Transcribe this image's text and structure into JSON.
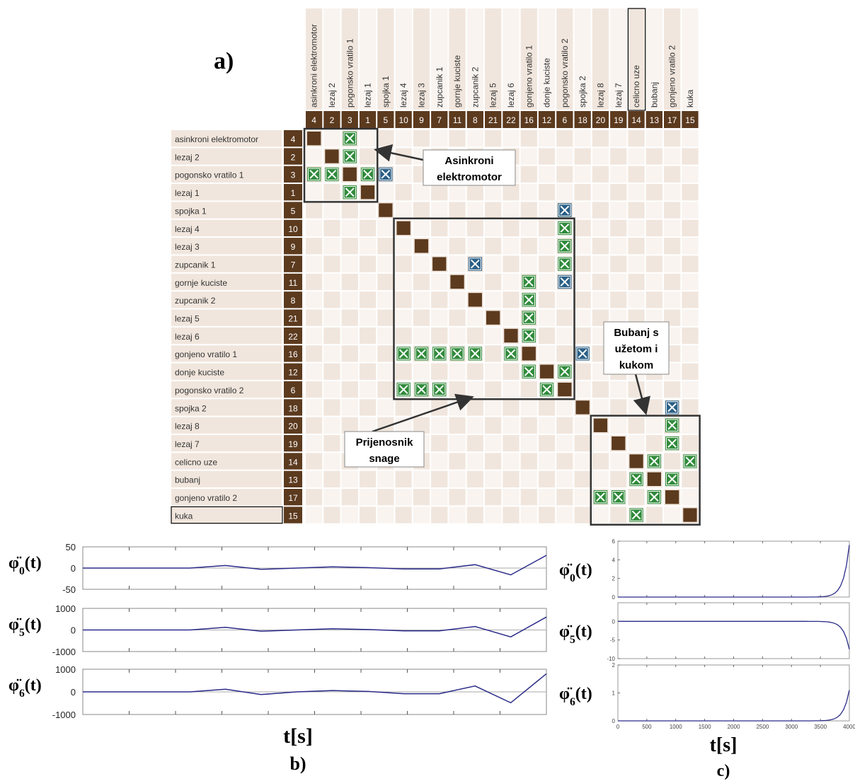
{
  "panel_a": {
    "label": "a)",
    "columns": [
      {
        "name": "asinkroni elektromotor",
        "id": "4"
      },
      {
        "name": "lezaj 2",
        "id": "2"
      },
      {
        "name": "pogonsko vratilo 1",
        "id": "3"
      },
      {
        "name": "lezaj 1",
        "id": "1"
      },
      {
        "name": "spojka 1",
        "id": "5"
      },
      {
        "name": "lezaj 4",
        "id": "10"
      },
      {
        "name": "lezaj 3",
        "id": "9"
      },
      {
        "name": "zupcanik 1",
        "id": "7"
      },
      {
        "name": "gornje kuciste",
        "id": "11"
      },
      {
        "name": "zupcanik 2",
        "id": "8"
      },
      {
        "name": "lezaj 5",
        "id": "21"
      },
      {
        "name": "lezaj 6",
        "id": "22"
      },
      {
        "name": "gonjeno vratilo 1",
        "id": "16"
      },
      {
        "name": "donje kuciste",
        "id": "12"
      },
      {
        "name": "pogonsko vratilo 2",
        "id": "6"
      },
      {
        "name": "spojka 2",
        "id": "18"
      },
      {
        "name": "lezaj 8",
        "id": "20"
      },
      {
        "name": "lezaj 7",
        "id": "19"
      },
      {
        "name": "celicno uze",
        "id": "14"
      },
      {
        "name": "bubanj",
        "id": "13"
      },
      {
        "name": "gonjeno vratilo 2",
        "id": "17"
      },
      {
        "name": "kuka",
        "id": "15"
      }
    ],
    "rows": [
      {
        "name": "asinkroni elektromotor",
        "id": "4"
      },
      {
        "name": "lezaj 2",
        "id": "2"
      },
      {
        "name": "pogonsko vratilo 1",
        "id": "3"
      },
      {
        "name": "lezaj 1",
        "id": "1"
      },
      {
        "name": "spojka 1",
        "id": "5"
      },
      {
        "name": "lezaj 4",
        "id": "10"
      },
      {
        "name": "lezaj 3",
        "id": "9"
      },
      {
        "name": "zupcanik 1",
        "id": "7"
      },
      {
        "name": "gornje kuciste",
        "id": "11"
      },
      {
        "name": "zupcanik 2",
        "id": "8"
      },
      {
        "name": "lezaj 5",
        "id": "21"
      },
      {
        "name": "lezaj 6",
        "id": "22"
      },
      {
        "name": "gonjeno vratilo 1",
        "id": "16"
      },
      {
        "name": "donje kuciste",
        "id": "12"
      },
      {
        "name": "pogonsko vratilo 2",
        "id": "6"
      },
      {
        "name": "spojka 2",
        "id": "18"
      },
      {
        "name": "lezaj 8",
        "id": "20"
      },
      {
        "name": "lezaj 7",
        "id": "19"
      },
      {
        "name": "celicno uze",
        "id": "14"
      },
      {
        "name": "bubanj",
        "id": "13"
      },
      {
        "name": "gonjeno vratilo 2",
        "id": "17"
      },
      {
        "name": "kuka",
        "id": "15"
      }
    ],
    "green_marks": [
      [
        0,
        2
      ],
      [
        1,
        2
      ],
      [
        2,
        0
      ],
      [
        2,
        1
      ],
      [
        2,
        3
      ],
      [
        3,
        2
      ],
      [
        4,
        14
      ],
      [
        5,
        14
      ],
      [
        6,
        14
      ],
      [
        7,
        14
      ],
      [
        8,
        12
      ],
      [
        9,
        12
      ],
      [
        10,
        12
      ],
      [
        11,
        12
      ],
      [
        12,
        5
      ],
      [
        12,
        6
      ],
      [
        12,
        7
      ],
      [
        12,
        8
      ],
      [
        12,
        9
      ],
      [
        12,
        11
      ],
      [
        13,
        12
      ],
      [
        13,
        14
      ],
      [
        14,
        5
      ],
      [
        14,
        6
      ],
      [
        14,
        7
      ],
      [
        14,
        13
      ],
      [
        16,
        20
      ],
      [
        17,
        20
      ],
      [
        18,
        19
      ],
      [
        18,
        21
      ],
      [
        19,
        18
      ],
      [
        19,
        20
      ],
      [
        20,
        16
      ],
      [
        20,
        17
      ],
      [
        20,
        19
      ],
      [
        21,
        18
      ]
    ],
    "blue_marks": [
      [
        2,
        4
      ],
      [
        4,
        14
      ],
      [
        7,
        9
      ],
      [
        8,
        14
      ],
      [
        12,
        15
      ],
      [
        15,
        20
      ]
    ],
    "callouts": {
      "motor": [
        "Asinkroni",
        "elektromotor"
      ],
      "drive": [
        "Prijenosnik",
        "snage"
      ],
      "drum": [
        "Bubanj s",
        "užetom i",
        "kukom"
      ]
    },
    "colors": {
      "diag": "#5c3a1e",
      "green": "#2f8a3a",
      "blue": "#2a5f86",
      "cellA": "#f1e6dd",
      "cellB": "#f9f4f0",
      "header": "#5c3a1e"
    }
  },
  "panel_b": {
    "label": "b)",
    "xlabel": "t[s]",
    "plots": [
      {
        "ylabel_base": "φ̈",
        "sub": "0",
        "tail": "(t)",
        "yticks": [
          "50",
          "0",
          "-50"
        ]
      },
      {
        "ylabel_base": "φ̈",
        "sub": "5",
        "tail": "(t)",
        "yticks": [
          "1000",
          "0",
          "-1000"
        ]
      },
      {
        "ylabel_base": "φ̈",
        "sub": "6",
        "tail": "(t)",
        "yticks": [
          "1000",
          "0",
          "-1000"
        ]
      }
    ],
    "series": [
      [
        0,
        0,
        0,
        0,
        6,
        -3,
        0,
        3,
        1,
        -2,
        -2,
        8,
        -16,
        30
      ],
      [
        0,
        0,
        0,
        0,
        120,
        -60,
        0,
        60,
        20,
        -40,
        -40,
        160,
        -320,
        600
      ],
      [
        0,
        0,
        0,
        0,
        120,
        -120,
        0,
        60,
        20,
        -80,
        -80,
        260,
        -480,
        800
      ]
    ]
  },
  "panel_c": {
    "label": "c)",
    "xlabel": "t[s]",
    "xticks": [
      "0",
      "500",
      "1000",
      "1500",
      "2000",
      "2500",
      "3000",
      "3500",
      "4000"
    ],
    "plots": [
      {
        "ylabel_base": "φ̈",
        "sub": "0",
        "tail": "(t)",
        "yticks": [
          "6",
          "4",
          "2",
          "0"
        ],
        "ymin": 0,
        "ymax": 6
      },
      {
        "ylabel_base": "φ̈",
        "sub": "5",
        "tail": "(t)",
        "yticks": [
          "0",
          "-5",
          "-10"
        ],
        "ymin": -10,
        "ymax": 5
      },
      {
        "ylabel_base": "φ̈",
        "sub": "6",
        "tail": "(t)",
        "yticks": [
          "2",
          "1",
          "0"
        ],
        "ymin": 0,
        "ymax": 2
      }
    ]
  }
}
